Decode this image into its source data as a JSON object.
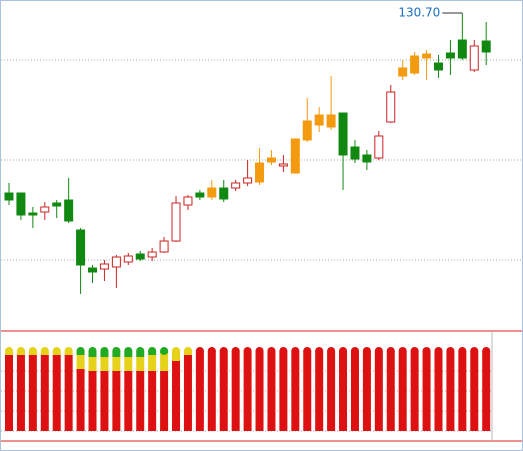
{
  "chart_data": [
    {
      "type": "candlestick",
      "ylim": [
        99,
        132
      ],
      "yticks": [
        106,
        116,
        126
      ],
      "grid": true,
      "hollow_color": "#cc2222",
      "annotation": {
        "label": "130.70",
        "value": 130.7,
        "color": "#1a6fc0"
      },
      "open": [
        112.7,
        112.7,
        110.7,
        110.8,
        111.7,
        112.0,
        109.0,
        105.2,
        105.1,
        105.3,
        105.8,
        106.6,
        106.3,
        106.8,
        107.9,
        111.5,
        112.7,
        113.2,
        113.2,
        113.2,
        113.7,
        115.7,
        116.2,
        115.4,
        118.1,
        119.9,
        120.5,
        120.5,
        120.7,
        117.3,
        116.5,
        116.2,
        119.8,
        125.2,
        126.4,
        126.6,
        125.7,
        126.7,
        128.0,
        125.0,
        127.9
      ],
      "high": [
        113.7,
        112.7,
        111.3,
        111.8,
        112.0,
        114.2,
        109.2,
        105.5,
        106.0,
        106.5,
        106.7,
        106.9,
        107.2,
        108.3,
        112.4,
        112.5,
        113.0,
        114.0,
        114.0,
        114.0,
        116.0,
        117.2,
        117.0,
        116.5,
        118.1,
        122.2,
        121.3,
        124.4,
        120.7,
        118.0,
        117.0,
        118.9,
        123.5,
        126.0,
        126.8,
        127.0,
        126.5,
        128.0,
        130.7,
        128.0,
        129.8
      ],
      "low": [
        111.5,
        110.0,
        109.2,
        110.0,
        110.2,
        109.7,
        102.6,
        103.7,
        103.9,
        103.2,
        105.5,
        105.9,
        105.9,
        106.7,
        107.8,
        111.0,
        112.0,
        112.0,
        111.8,
        112.9,
        113.4,
        113.5,
        115.5,
        114.8,
        114.7,
        117.8,
        118.8,
        119.0,
        113.0,
        115.7,
        115.0,
        116.0,
        119.7,
        124.0,
        124.5,
        124.0,
        124.2,
        124.5,
        126.0,
        124.8,
        125.5
      ],
      "close": [
        112.0,
        110.5,
        110.5,
        111.3,
        111.4,
        109.9,
        105.5,
        104.8,
        105.6,
        106.3,
        106.4,
        106.1,
        106.8,
        107.9,
        111.7,
        112.3,
        112.3,
        112.3,
        112.1,
        113.7,
        114.2,
        113.8,
        115.8,
        115.6,
        114.7,
        118.0,
        119.5,
        119.3,
        116.5,
        116.1,
        115.8,
        118.4,
        122.8,
        124.4,
        124.7,
        126.2,
        125.0,
        126.2,
        126.2,
        127.4,
        126.8
      ],
      "colors": [
        "#118811",
        "#118811",
        "#118811",
        "#cc2222",
        "#118811",
        "#118811",
        "#118811",
        "#118811",
        "#cc2222",
        "#cc2222",
        "#cc2222",
        "#118811",
        "#cc2222",
        "#cc2222",
        "#cc2222",
        "#cc2222",
        "#118811",
        "#f39a0e",
        "#118811",
        "#cc2222",
        "#cc2222",
        "#f39a0e",
        "#f39a0e",
        "#cc2222",
        "#f39a0e",
        "#f39a0e",
        "#f39a0e",
        "#f39a0e",
        "#118811",
        "#118811",
        "#118811",
        "#cc2222",
        "#cc2222",
        "#f39a0e",
        "#f39a0e",
        "#f39a0e",
        "#118811",
        "#118811",
        "#118811",
        "#cc2222",
        "#118811"
      ]
    },
    {
      "type": "stacked_bar",
      "ylim": [
        -0.5,
        5
      ],
      "yticks": [
        0,
        1,
        2,
        3
      ],
      "grid": true,
      "series": [
        {
          "color": "#dd1111",
          "values": [
            3.8,
            3.8,
            3.8,
            3.8,
            3.8,
            3.8,
            3.1,
            3.0,
            3.0,
            3.0,
            3.0,
            3.0,
            3.0,
            3.0,
            3.5,
            3.8,
            4,
            4,
            4,
            4,
            4,
            4,
            4,
            4,
            4,
            4,
            4,
            4,
            4,
            4,
            4,
            4,
            4,
            4,
            4,
            4,
            4,
            4,
            4,
            4,
            4
          ]
        },
        {
          "color": "#e6d21a",
          "values": [
            0.2,
            0.2,
            0.2,
            0.2,
            0.2,
            0.2,
            0.7,
            0.7,
            0.7,
            0.7,
            0.7,
            0.7,
            0.8,
            0.9,
            0.5,
            0.2,
            0,
            0,
            0,
            0,
            0,
            0,
            0,
            0,
            0,
            0,
            0,
            0,
            0,
            0,
            0,
            0,
            0,
            0,
            0,
            0,
            0,
            0,
            0,
            0,
            0
          ]
        },
        {
          "color": "#22aa22",
          "values": [
            0,
            0,
            0,
            0,
            0,
            0,
            0.2,
            0.3,
            0.3,
            0.3,
            0.3,
            0.3,
            0.2,
            0.1,
            0,
            0,
            0,
            0,
            0,
            0,
            0,
            0,
            0,
            0,
            0,
            0,
            0,
            0,
            0,
            0,
            0,
            0,
            0,
            0,
            0,
            0,
            0,
            0,
            0,
            0,
            0
          ]
        }
      ]
    }
  ]
}
